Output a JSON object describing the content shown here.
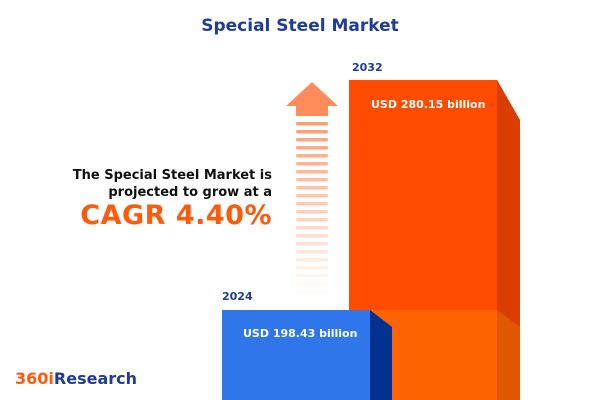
{
  "title": "Special Steel Market",
  "lead_text": [
    "The Special Steel Market is",
    "projected to grow at a"
  ],
  "cagr_text": "CAGR 4.40%",
  "logo": {
    "part1": "360i",
    "part2": "Research"
  },
  "colors": {
    "title": "#1e3d96",
    "accent": "#ff5a0a",
    "bar_2024": "#2f76ea",
    "bar_2032": "#ff4c00"
  },
  "chart_data": {
    "type": "bar",
    "categories": [
      "2024",
      "2032"
    ],
    "values": [
      198.43,
      280.15
    ],
    "data_labels": [
      "USD 198.43 billion",
      "USD 280.15 billion"
    ],
    "unit": "USD billion",
    "cagr_percent": 4.4,
    "grid": false
  }
}
